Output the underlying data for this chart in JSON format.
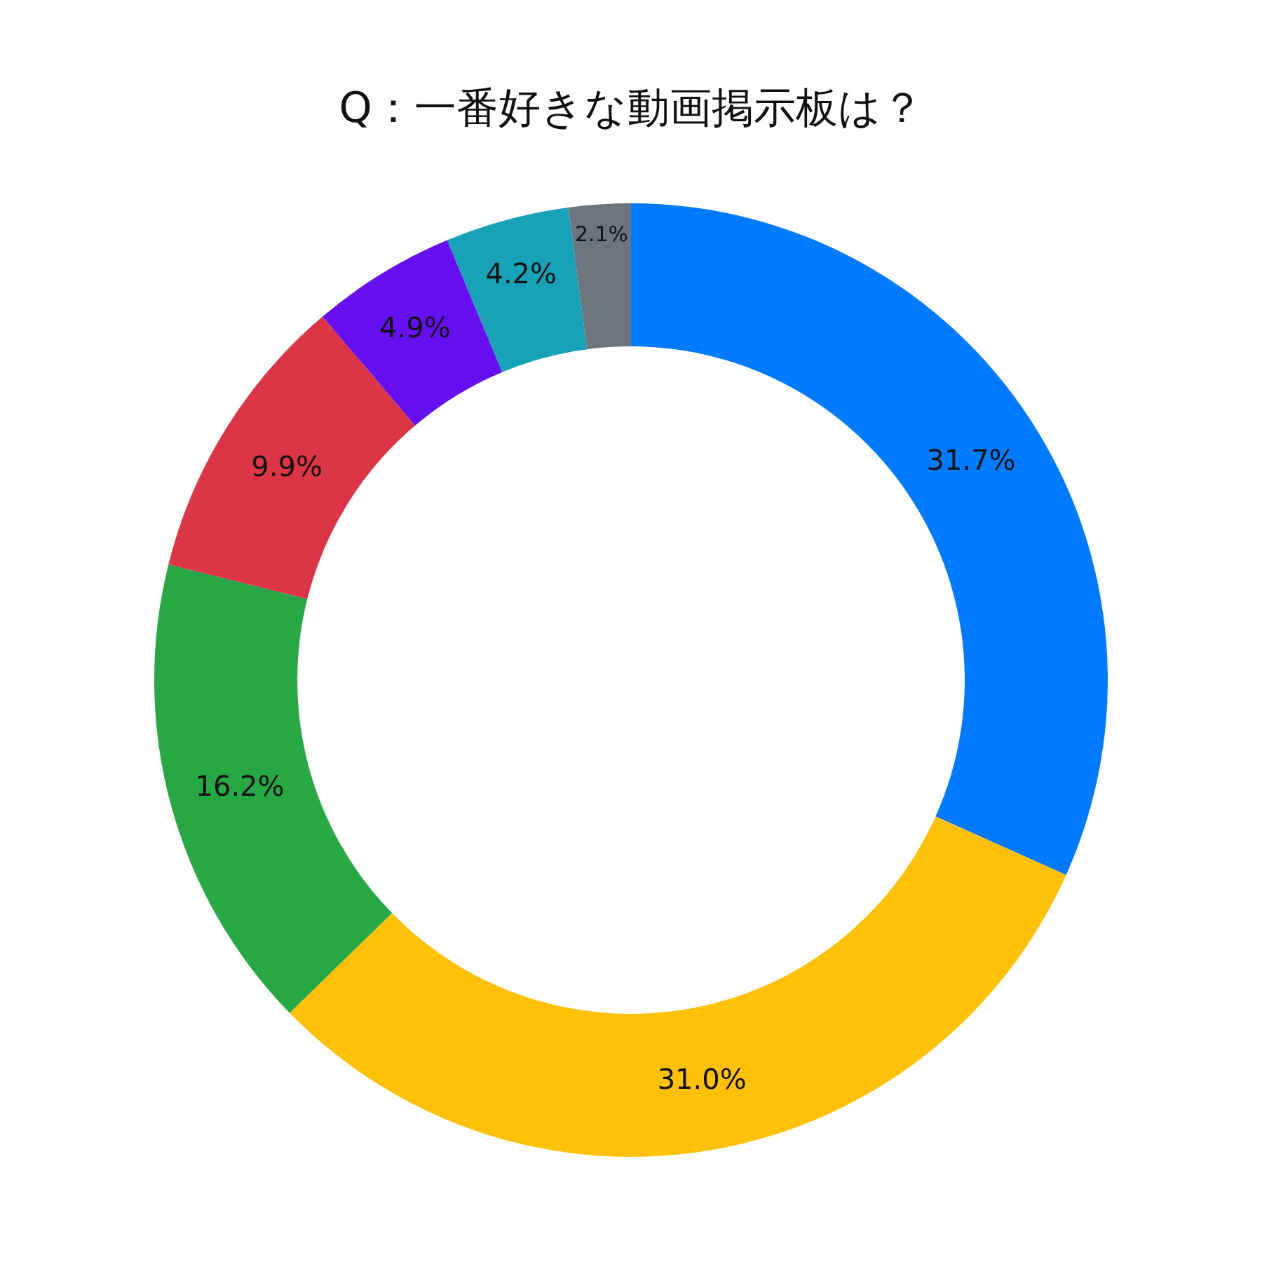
{
  "chart_data": {
    "type": "donut",
    "title": "Q：一番好きな動画掲示板は？",
    "categories": [
      null,
      null,
      null,
      null,
      null,
      null,
      null
    ],
    "values": [
      31.7,
      31.0,
      16.2,
      9.9,
      4.9,
      4.2,
      2.1
    ],
    "value_labels": [
      "31.7%",
      "31.0%",
      "16.2%",
      "9.9%",
      "4.9%",
      "4.2%",
      "2.1%"
    ],
    "colors": [
      "#007bff",
      "#ffc107",
      "#28a745",
      "#dc3545",
      "#6610f2",
      "#17a2b8",
      "#6c757d"
    ]
  }
}
